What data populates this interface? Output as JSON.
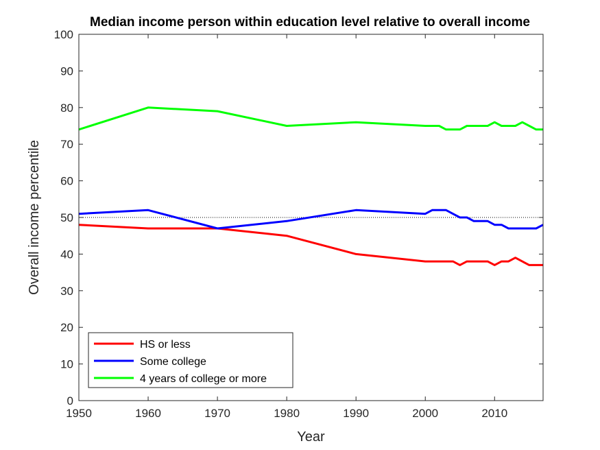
{
  "chart_data": {
    "type": "line",
    "title": "Median income person within education level relative to overall income",
    "xlabel": "Year",
    "ylabel": "Overall income percentile",
    "xlim": [
      1950,
      2017
    ],
    "ylim": [
      0,
      100
    ],
    "xticks": [
      1950,
      1960,
      1970,
      1980,
      1990,
      2000,
      2010
    ],
    "yticks": [
      0,
      10,
      20,
      30,
      40,
      50,
      60,
      70,
      80,
      90,
      100
    ],
    "reference_line": {
      "y": 50,
      "style": "dotted"
    },
    "legend_position": "bottom-left",
    "series": [
      {
        "name": "HS or less",
        "color": "#ff0000",
        "x": [
          1950,
          1960,
          1970,
          1980,
          1990,
          2000,
          2001,
          2002,
          2003,
          2004,
          2005,
          2006,
          2007,
          2008,
          2009,
          2010,
          2011,
          2012,
          2013,
          2014,
          2015,
          2016,
          2017
        ],
        "y": [
          48,
          47,
          47,
          45,
          40,
          38,
          38,
          38,
          38,
          38,
          37,
          38,
          38,
          38,
          38,
          37,
          38,
          38,
          39,
          38,
          37,
          37,
          37
        ]
      },
      {
        "name": "Some college",
        "color": "#0000ff",
        "x": [
          1950,
          1960,
          1970,
          1980,
          1990,
          2000,
          2001,
          2002,
          2003,
          2004,
          2005,
          2006,
          2007,
          2008,
          2009,
          2010,
          2011,
          2012,
          2013,
          2014,
          2015,
          2016,
          2017
        ],
        "y": [
          51,
          52,
          47,
          49,
          52,
          51,
          52,
          52,
          52,
          51,
          50,
          50,
          49,
          49,
          49,
          48,
          48,
          47,
          47,
          47,
          47,
          47,
          48
        ]
      },
      {
        "name": "4 years of college or more",
        "color": "#00ff00",
        "x": [
          1950,
          1960,
          1970,
          1980,
          1990,
          2000,
          2001,
          2002,
          2003,
          2004,
          2005,
          2006,
          2007,
          2008,
          2009,
          2010,
          2011,
          2012,
          2013,
          2014,
          2015,
          2016,
          2017
        ],
        "y": [
          74,
          80,
          79,
          75,
          76,
          75,
          75,
          75,
          74,
          74,
          74,
          75,
          75,
          75,
          75,
          76,
          75,
          75,
          75,
          76,
          75,
          74,
          74
        ]
      }
    ]
  }
}
